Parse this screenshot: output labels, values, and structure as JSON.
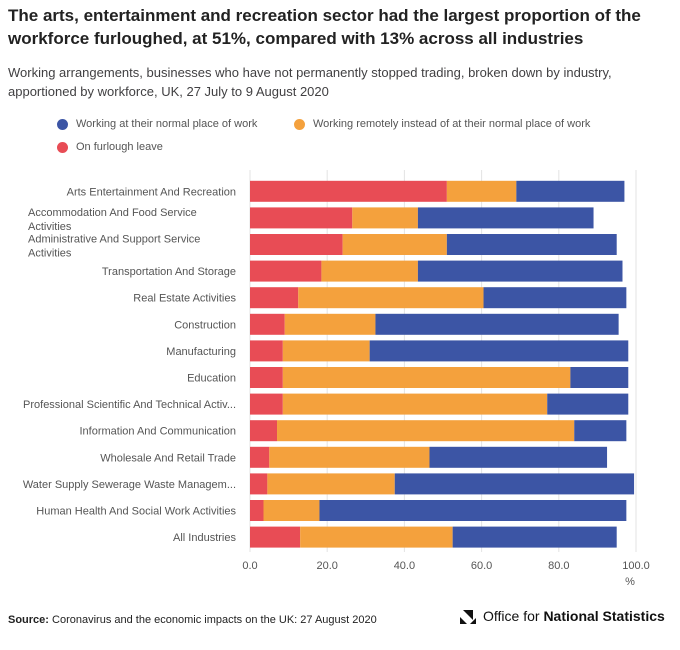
{
  "header": {
    "title": "The arts, entertainment and recreation sector had the largest proportion of the workforce furloughed, at 51%, compared with 13% across all industries",
    "subtitle": "Working arrangements, businesses who have not permanently stopped trading, broken down by industry, apportioned by workforce, UK, 27 July to 9 August 2020"
  },
  "legend": {
    "normal": "Working at their normal place of work",
    "remote": "Working remotely instead of at their normal place of work",
    "furlough": "On furlough leave"
  },
  "colors": {
    "furlough": "#e84c55",
    "remote": "#f4a13d",
    "normal": "#3c55a5"
  },
  "chart_data": {
    "type": "bar",
    "orientation": "horizontal",
    "stacked": true,
    "categories": [
      [
        "Arts Entertainment And Recreation"
      ],
      [
        "Accommodation And Food Service",
        "Activities"
      ],
      [
        "Administrative And Support Service",
        "Activities"
      ],
      [
        "Transportation And Storage"
      ],
      [
        "Real Estate Activities"
      ],
      [
        "Construction"
      ],
      [
        "Manufacturing"
      ],
      [
        "Education"
      ],
      [
        "Professional Scientific And Technical Activ..."
      ],
      [
        "Information And Communication"
      ],
      [
        "Wholesale And Retail Trade"
      ],
      [
        "Water Supply Sewerage Waste Managem..."
      ],
      [
        "Human Health And Social Work Activities"
      ],
      [
        "All Industries"
      ]
    ],
    "series": [
      {
        "name": "On furlough leave",
        "key": "furlough",
        "values": [
          51,
          26.5,
          24,
          18.5,
          12.5,
          9,
          8.5,
          8.5,
          8.5,
          7,
          5,
          4.5,
          3.5,
          13
        ]
      },
      {
        "name": "Working remotely instead of at their normal place of work",
        "key": "remote",
        "values": [
          18,
          17,
          27,
          25,
          48,
          23.5,
          22.5,
          74.5,
          68.5,
          77,
          41.5,
          33,
          14.5,
          39.5
        ]
      },
      {
        "name": "Working at their normal place of work",
        "key": "normal",
        "values": [
          28,
          45.5,
          44,
          53,
          37,
          63,
          67,
          15,
          21,
          13.5,
          46,
          62,
          79.5,
          42.5
        ]
      }
    ],
    "x_ticks": [
      "0.0",
      "20.0",
      "40.0",
      "60.0",
      "80.0",
      "100.0"
    ],
    "x_tick_values": [
      0,
      20,
      40,
      60,
      80,
      100
    ],
    "xlim": [
      0,
      100
    ],
    "xlabel": "%",
    "legend_position": "top"
  },
  "footer": {
    "source_label": "Source:",
    "source_text": "Coronavirus and the economic impacts on the UK: 27 August 2020",
    "org_prefix": "Office for",
    "org_name": "National Statistics"
  }
}
